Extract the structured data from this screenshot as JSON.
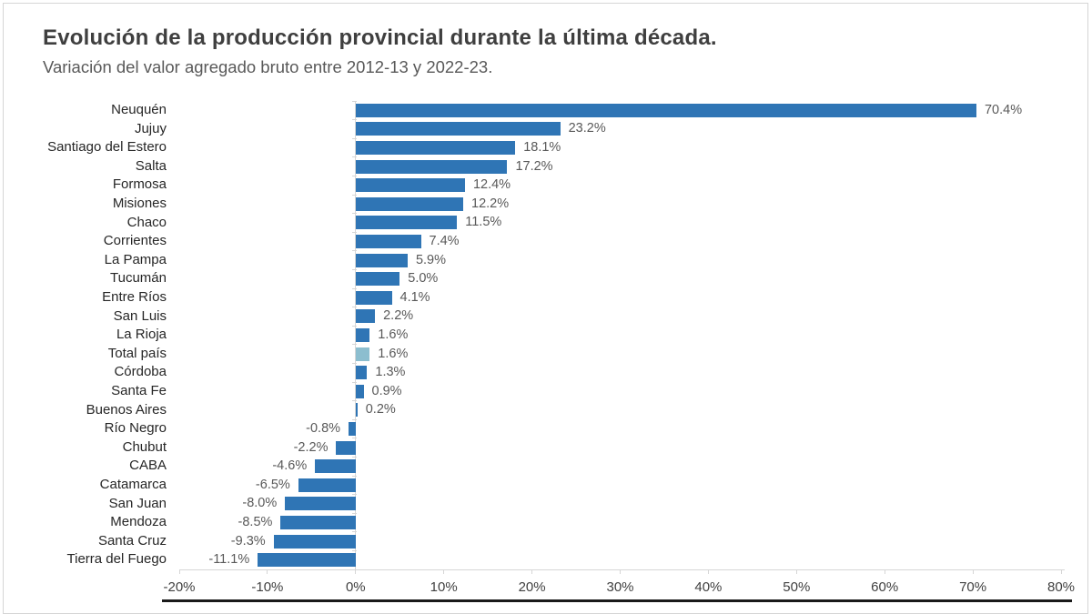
{
  "chart_data": {
    "type": "bar",
    "orientation": "horizontal",
    "title": "Evolución de la producción provincial durante la última década.",
    "subtitle": "Variación del valor agregado bruto entre 2012-13 y 2022-23.",
    "categories": [
      "Neuquén",
      "Jujuy",
      "Santiago del Estero",
      "Salta",
      "Formosa",
      "Misiones",
      "Chaco",
      "Corrientes",
      "La Pampa",
      "Tucumán",
      "Entre Ríos",
      "San Luis",
      "La Rioja",
      "Total país",
      "Córdoba",
      "Santa Fe",
      "Buenos Aires",
      "Río Negro",
      "Chubut",
      "CABA",
      "Catamarca",
      "San Juan",
      "Mendoza",
      "Santa Cruz",
      "Tierra del Fuego"
    ],
    "values": [
      70.4,
      23.2,
      18.1,
      17.2,
      12.4,
      12.2,
      11.5,
      7.4,
      5.9,
      5.0,
      4.1,
      2.2,
      1.6,
      1.6,
      1.3,
      0.9,
      0.2,
      -0.8,
      -2.2,
      -4.6,
      -6.5,
      -8.0,
      -8.5,
      -9.3,
      -11.1
    ],
    "value_labels": [
      "70.4%",
      "23.2%",
      "18.1%",
      "17.2%",
      "12.4%",
      "12.2%",
      "11.5%",
      "7.4%",
      "5.9%",
      "5.0%",
      "4.1%",
      "2.2%",
      "1.6%",
      "1.6%",
      "1.3%",
      "0.9%",
      "0.2%",
      "-0.8%",
      "-2.2%",
      "-4.6%",
      "-6.5%",
      "-8.0%",
      "-8.5%",
      "-9.3%",
      "-11.1%"
    ],
    "highlight_category": "Total país",
    "x_ticks": [
      "-20%",
      "-10%",
      "0%",
      "10%",
      "20%",
      "30%",
      "40%",
      "50%",
      "60%",
      "70%",
      "80%"
    ],
    "x_tick_values": [
      -20,
      -10,
      0,
      10,
      20,
      30,
      40,
      50,
      60,
      70,
      80
    ],
    "xlim": [
      -20,
      80
    ],
    "grid": false,
    "legend": false,
    "colors": {
      "bar": "#2f75b5",
      "highlight_bar": "#8cbecf",
      "category_label": "#262626",
      "value_label": "#595959",
      "axis_line": "#d6d6d6",
      "tick_label": "#404040",
      "title": "#3f3f3f",
      "subtitle": "#595959",
      "card_border": "#d5d5d5",
      "bottom_rule": "#1a1a1a"
    }
  }
}
